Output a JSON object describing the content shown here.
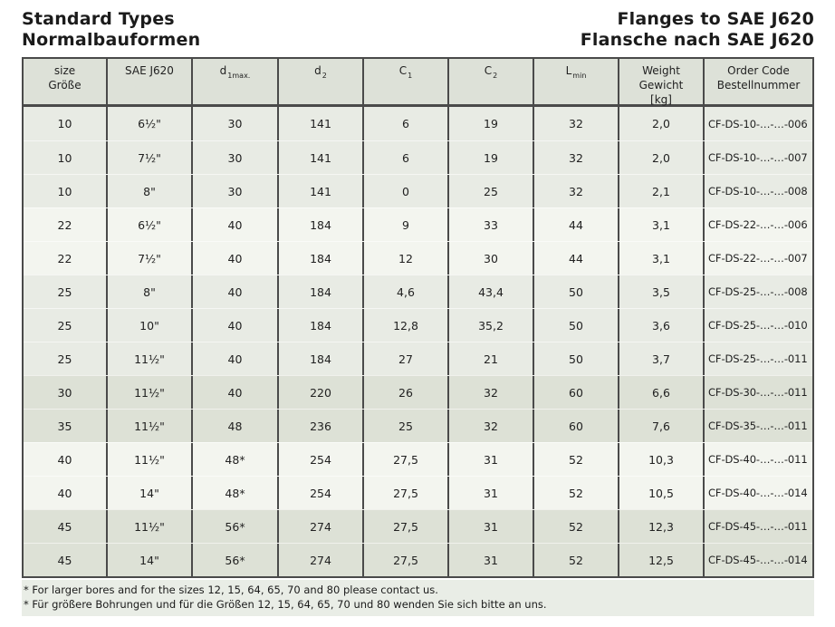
{
  "header": {
    "title_left": [
      "Standard Types",
      "Normalbauformen"
    ],
    "title_right": [
      "Flanges to SAE J620",
      "Flansche nach SAE J620"
    ]
  },
  "table": {
    "columns": [
      {
        "id": "size",
        "lines": [
          "size",
          "Größe"
        ]
      },
      {
        "id": "sae",
        "lines": [
          "SAE J620"
        ]
      },
      {
        "id": "d1",
        "main": "d",
        "sub": "1max."
      },
      {
        "id": "d2",
        "main": "d",
        "sub": "2"
      },
      {
        "id": "c1",
        "main": "C",
        "sub": "1"
      },
      {
        "id": "c2",
        "main": "C",
        "sub": "2"
      },
      {
        "id": "lmin",
        "main": "L",
        "sub": "min"
      },
      {
        "id": "weight",
        "lines": [
          "Weight",
          "Gewicht",
          "[kg]"
        ]
      },
      {
        "id": "order",
        "lines": [
          "Order Code",
          "Bestellnummer"
        ]
      }
    ],
    "rows": [
      {
        "band": "light",
        "cells": [
          "10",
          "6½\"",
          "30",
          "141",
          "6",
          "19",
          "32",
          "2,0",
          "CF-DS-10-…-…-006"
        ]
      },
      {
        "band": "light",
        "cells": [
          "10",
          "7½\"",
          "30",
          "141",
          "6",
          "19",
          "32",
          "2,0",
          "CF-DS-10-…-…-007"
        ]
      },
      {
        "band": "light",
        "cells": [
          "10",
          "8\"",
          "30",
          "141",
          "0",
          "25",
          "32",
          "2,1",
          "CF-DS-10-…-…-008"
        ]
      },
      {
        "band": "white",
        "cells": [
          "22",
          "6½\"",
          "40",
          "184",
          "9",
          "33",
          "44",
          "3,1",
          "CF-DS-22-…-…-006"
        ]
      },
      {
        "band": "white",
        "cells": [
          "22",
          "7½\"",
          "40",
          "184",
          "12",
          "30",
          "44",
          "3,1",
          "CF-DS-22-…-…-007"
        ]
      },
      {
        "band": "light",
        "cells": [
          "25",
          "8\"",
          "40",
          "184",
          "4,6",
          "43,4",
          "50",
          "3,5",
          "CF-DS-25-…-…-008"
        ]
      },
      {
        "band": "light",
        "cells": [
          "25",
          "10\"",
          "40",
          "184",
          "12,8",
          "35,2",
          "50",
          "3,6",
          "CF-DS-25-…-…-010"
        ]
      },
      {
        "band": "light",
        "cells": [
          "25",
          "11½\"",
          "40",
          "184",
          "27",
          "21",
          "50",
          "3,7",
          "CF-DS-25-…-…-011"
        ]
      },
      {
        "band": "dark",
        "cells": [
          "30",
          "11½\"",
          "40",
          "220",
          "26",
          "32",
          "60",
          "6,6",
          "CF-DS-30-…-…-011"
        ]
      },
      {
        "band": "dark",
        "cells": [
          "35",
          "11½\"",
          "48",
          "236",
          "25",
          "32",
          "60",
          "7,6",
          "CF-DS-35-…-…-011"
        ]
      },
      {
        "band": "white",
        "cells": [
          "40",
          "11½\"",
          "48*",
          "254",
          "27,5",
          "31",
          "52",
          "10,3",
          "CF-DS-40-…-…-011"
        ]
      },
      {
        "band": "white",
        "cells": [
          "40",
          "14\"",
          "48*",
          "254",
          "27,5",
          "31",
          "52",
          "10,5",
          "CF-DS-40-…-…-014"
        ]
      },
      {
        "band": "dark",
        "cells": [
          "45",
          "11½\"",
          "56*",
          "274",
          "27,5",
          "31",
          "52",
          "12,3",
          "CF-DS-45-…-…-011"
        ]
      },
      {
        "band": "dark",
        "cells": [
          "45",
          "14\"",
          "56*",
          "274",
          "27,5",
          "31",
          "52",
          "12,5",
          "CF-DS-45-…-…-014"
        ]
      }
    ]
  },
  "footnotes": [
    "* For larger bores and for the sizes 12, 15, 64, 65, 70 and 80 please contact us.",
    "* Für größere Bohrungen und für die Größen 12, 15, 64, 65, 70 und 80 wenden Sie sich bitte an uns."
  ],
  "colors": {
    "border": "#4a4a4a",
    "header_bg": "#dde1d8",
    "band_light": "#e8ebe4",
    "band_white": "#f3f5ef",
    "band_dark": "#dde1d6",
    "footnote_bg": "#e9ede6",
    "text": "#212121"
  }
}
